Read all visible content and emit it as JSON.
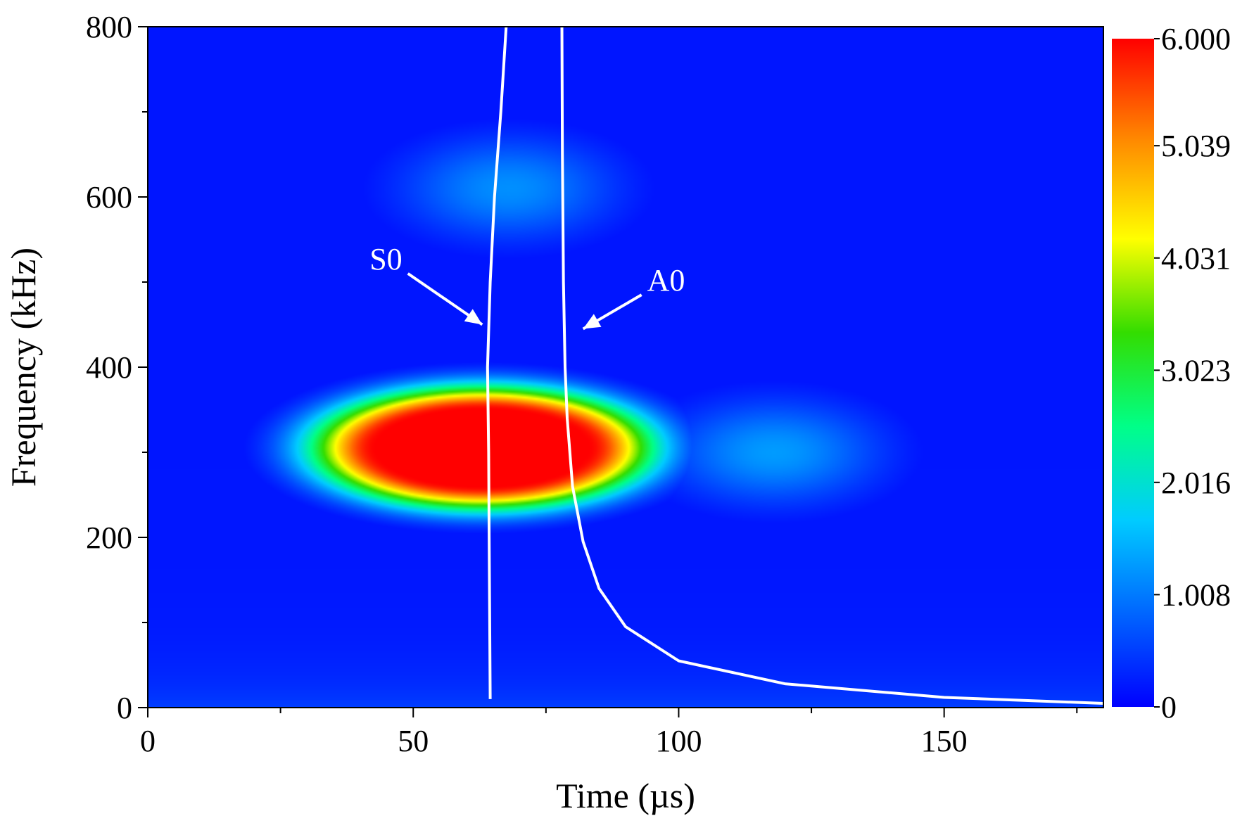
{
  "chart_data": {
    "type": "heatmap",
    "xlabel": "Time (µs)",
    "ylabel": "Frequency (kHz)",
    "xlim": [
      0,
      180
    ],
    "ylim": [
      0,
      800
    ],
    "x_ticks": [
      "0",
      "50",
      "100",
      "150"
    ],
    "y_ticks": [
      "0",
      "200",
      "400",
      "600",
      "800"
    ],
    "colorbar": {
      "min": 0,
      "max": 6.0,
      "tick_labels": [
        "0",
        "1.008",
        "2.016",
        "3.023",
        "4.031",
        "5.039",
        "6.000"
      ],
      "colormap": [
        "#0000ff",
        "#0066ff",
        "#00ccff",
        "#00ff88",
        "#33dd00",
        "#ffff00",
        "#ff8800",
        "#ff0000"
      ]
    },
    "blobs": [
      {
        "t_center": 63,
        "f_center": 305,
        "peak": 6.0,
        "t_halfwidth": 32,
        "f_halfwidth": 72
      },
      {
        "t_center": 118,
        "f_center": 300,
        "peak": 1.3,
        "t_halfwidth": 20,
        "f_halfwidth": 60
      },
      {
        "t_center": 68,
        "f_center": 610,
        "peak": 1.2,
        "t_halfwidth": 20,
        "f_halfwidth": 60
      }
    ],
    "series": [
      {
        "name": "S0",
        "color": "#ffffff",
        "x": [
          64.5,
          64.4,
          64.3,
          64.2,
          64.0,
          64.5,
          65.3,
          66.5,
          67.5
        ],
        "y": [
          10,
          100,
          200,
          300,
          400,
          500,
          600,
          700,
          800
        ]
      },
      {
        "name": "A0",
        "color": "#ffffff",
        "x": [
          180,
          150,
          120,
          100,
          90,
          85,
          82,
          80,
          79,
          78.6,
          78.3,
          78.1,
          78.0
        ],
        "y": [
          5,
          12,
          28,
          55,
          95,
          140,
          195,
          260,
          340,
          400,
          500,
          650,
          800
        ]
      }
    ],
    "annotations": [
      {
        "text": "S0",
        "series": "S0",
        "arrow_from": [
          49,
          510
        ],
        "arrow_to": [
          63,
          450
        ]
      },
      {
        "text": "A0",
        "series": "A0",
        "arrow_from": [
          93,
          485
        ],
        "arrow_to": [
          82,
          445
        ]
      }
    ]
  }
}
